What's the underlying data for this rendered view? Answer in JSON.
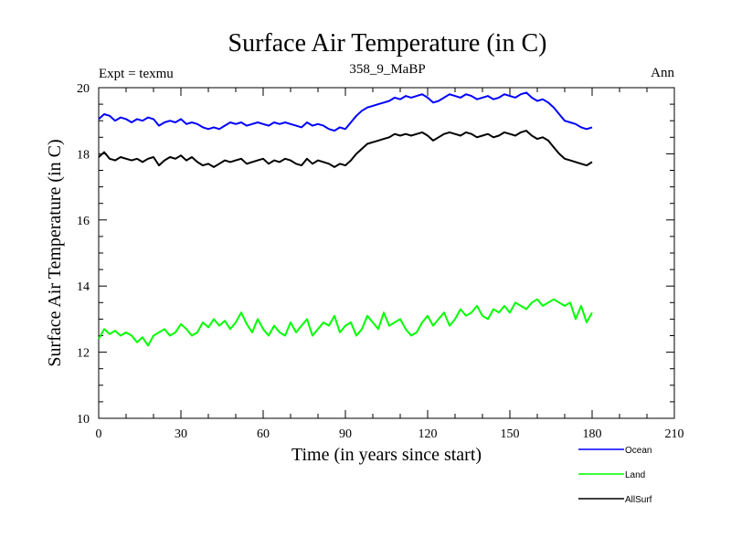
{
  "chart_data": {
    "type": "line",
    "title": "Surface Air Temperature (in C)",
    "subtitle_left": "Expt = texmu",
    "subtitle_center": "358_9_MaBP",
    "subtitle_right": "Ann",
    "xlabel": "Time (in years since start)",
    "ylabel": "Surface Air Temperature (in C)",
    "xlim": [
      0,
      210
    ],
    "ylim": [
      10,
      20
    ],
    "x_ticks": [
      0,
      30,
      60,
      90,
      120,
      150,
      180,
      210
    ],
    "y_ticks": [
      10,
      12,
      14,
      16,
      18,
      20
    ],
    "x_tick_labels": [
      "0",
      "30",
      "60",
      "90",
      "120",
      "150",
      "180",
      "210"
    ],
    "y_tick_labels": [
      "10",
      "12",
      "14",
      "16",
      "18",
      "20"
    ],
    "legend_position": "bottom-right",
    "x_start": 0,
    "x_step": 2,
    "series": [
      {
        "name": "Ocean",
        "color": "#0000ff",
        "values": [
          19.05,
          19.2,
          19.15,
          19.0,
          19.1,
          19.05,
          18.95,
          19.05,
          19.0,
          19.1,
          19.05,
          18.85,
          18.95,
          19.0,
          18.95,
          19.05,
          18.9,
          18.95,
          18.9,
          18.8,
          18.75,
          18.8,
          18.75,
          18.85,
          18.95,
          18.9,
          18.95,
          18.85,
          18.9,
          18.95,
          18.9,
          18.85,
          18.95,
          18.9,
          18.95,
          18.9,
          18.85,
          18.8,
          18.95,
          18.85,
          18.9,
          18.85,
          18.75,
          18.7,
          18.8,
          18.75,
          18.95,
          19.15,
          19.3,
          19.4,
          19.45,
          19.5,
          19.55,
          19.6,
          19.7,
          19.65,
          19.75,
          19.7,
          19.75,
          19.8,
          19.7,
          19.55,
          19.6,
          19.7,
          19.8,
          19.75,
          19.7,
          19.8,
          19.75,
          19.65,
          19.7,
          19.75,
          19.65,
          19.7,
          19.8,
          19.75,
          19.7,
          19.8,
          19.85,
          19.7,
          19.6,
          19.65,
          19.55,
          19.4,
          19.2,
          19.0,
          18.95,
          18.9,
          18.8,
          18.75,
          18.8
        ]
      },
      {
        "name": "Land",
        "color": "#00ff00",
        "values": [
          12.4,
          12.7,
          12.55,
          12.65,
          12.5,
          12.6,
          12.5,
          12.3,
          12.45,
          12.2,
          12.5,
          12.6,
          12.7,
          12.5,
          12.6,
          12.85,
          12.7,
          12.5,
          12.6,
          12.9,
          12.75,
          13.0,
          12.8,
          12.95,
          12.7,
          12.9,
          13.2,
          12.85,
          12.6,
          13.0,
          12.7,
          12.5,
          12.8,
          12.6,
          12.5,
          12.9,
          12.6,
          12.8,
          13.0,
          12.5,
          12.7,
          12.9,
          12.8,
          13.1,
          12.6,
          12.8,
          12.9,
          12.5,
          12.7,
          13.1,
          12.9,
          12.7,
          13.2,
          12.8,
          12.9,
          13.0,
          12.7,
          12.5,
          12.6,
          12.9,
          13.1,
          12.8,
          13.0,
          13.2,
          12.8,
          13.0,
          13.3,
          13.1,
          13.2,
          13.4,
          13.1,
          13.0,
          13.3,
          13.2,
          13.4,
          13.2,
          13.5,
          13.4,
          13.3,
          13.5,
          13.6,
          13.4,
          13.5,
          13.6,
          13.5,
          13.4,
          13.5,
          13.0,
          13.4,
          12.9,
          13.2
        ]
      },
      {
        "name": "AllSurf",
        "color": "#000000",
        "values": [
          17.9,
          18.05,
          17.85,
          17.8,
          17.9,
          17.85,
          17.8,
          17.85,
          17.75,
          17.85,
          17.9,
          17.65,
          17.8,
          17.9,
          17.85,
          17.95,
          17.8,
          17.9,
          17.75,
          17.65,
          17.7,
          17.6,
          17.7,
          17.8,
          17.75,
          17.8,
          17.85,
          17.7,
          17.75,
          17.8,
          17.85,
          17.7,
          17.8,
          17.75,
          17.85,
          17.8,
          17.7,
          17.65,
          17.85,
          17.7,
          17.8,
          17.75,
          17.7,
          17.6,
          17.7,
          17.65,
          17.8,
          18.0,
          18.15,
          18.3,
          18.35,
          18.4,
          18.45,
          18.5,
          18.6,
          18.55,
          18.6,
          18.55,
          18.6,
          18.65,
          18.55,
          18.4,
          18.5,
          18.6,
          18.65,
          18.6,
          18.55,
          18.65,
          18.6,
          18.5,
          18.55,
          18.6,
          18.5,
          18.55,
          18.65,
          18.6,
          18.55,
          18.65,
          18.7,
          18.55,
          18.45,
          18.5,
          18.4,
          18.2,
          18.0,
          17.85,
          17.8,
          17.75,
          17.7,
          17.65,
          17.75
        ]
      }
    ]
  }
}
